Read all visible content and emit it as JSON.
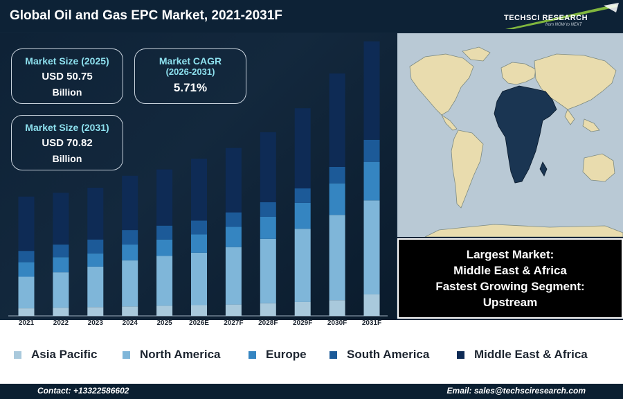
{
  "header": {
    "title": "Global Oil and Gas EPC Market, 2021-2031F"
  },
  "logo": {
    "name": "TECHSCI RESEARCH",
    "tagline": "from NOW to NEXT"
  },
  "stats": {
    "size_2025": {
      "label": "Market Size (2025)",
      "value": "USD 50.75",
      "unit": "Billion"
    },
    "cagr": {
      "label_line1": "Market CAGR",
      "label_line2": "(2026-2031)",
      "value": "5.71%"
    },
    "size_2031": {
      "label": "Market Size (2031)",
      "value": "USD 70.82",
      "unit": "Billion"
    }
  },
  "info": {
    "line1": "Largest Market:",
    "line2": "Middle East & Africa",
    "line3": "Fastest Growing Segment:",
    "line4": "Upstream"
  },
  "legend_items": [
    "Asia Pacific",
    "North America",
    "Europe",
    "South America",
    "Middle East & Africa"
  ],
  "colors": {
    "asia_pacific": "#a9c9dc",
    "north_america": "#7fb6d9",
    "europe": "#3585c1",
    "south_america": "#1c5a98",
    "middle_east_africa": "#0e2b55",
    "highlight_region": "#1a3552"
  },
  "footer": {
    "contact": "Contact: +13322586602",
    "email": "Email: sales@techsciresearch.com"
  },
  "chart_data": {
    "type": "bar",
    "stacked": true,
    "categories": [
      "2021",
      "2022",
      "2023",
      "2024",
      "2025",
      "2026E",
      "2027F",
      "2028F",
      "2029F",
      "2030F",
      "2031F"
    ],
    "series": [
      {
        "name": "Asia Pacific",
        "values": [
          1.2,
          1.3,
          1.4,
          1.5,
          1.6,
          1.7,
          1.8,
          2.0,
          2.2,
          2.5,
          3.4
        ]
      },
      {
        "name": "North America",
        "values": [
          5.0,
          5.6,
          6.4,
          7.3,
          7.9,
          8.3,
          9.1,
          10.2,
          11.6,
          13.5,
          14.9
        ]
      },
      {
        "name": "Europe",
        "values": [
          2.3,
          2.4,
          2.1,
          2.5,
          2.6,
          2.9,
          3.2,
          3.5,
          4.1,
          5.0,
          6.1
        ]
      },
      {
        "name": "South America",
        "values": [
          1.8,
          2.0,
          2.2,
          2.3,
          2.2,
          2.2,
          2.3,
          2.3,
          2.3,
          2.6,
          3.5
        ]
      },
      {
        "name": "Middle East & Africa",
        "values": [
          8.6,
          8.2,
          8.2,
          8.6,
          8.9,
          9.8,
          10.2,
          11.1,
          12.7,
          14.8,
          15.6
        ]
      }
    ],
    "ylim": [
      0,
      45
    ],
    "grid": false,
    "legend": "bottom"
  }
}
